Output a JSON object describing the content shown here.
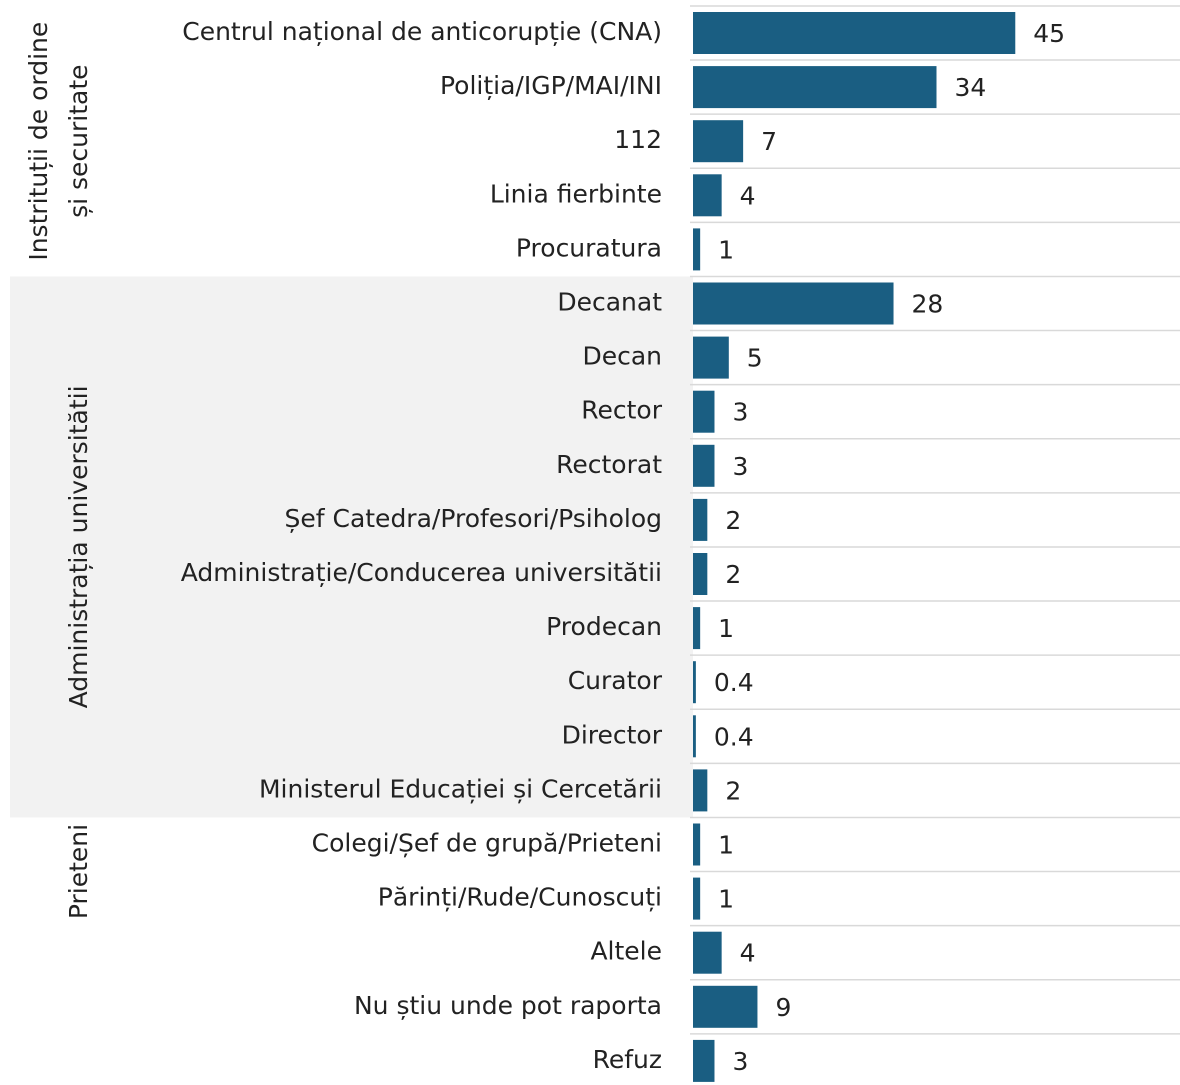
{
  "chart_data": {
    "type": "bar",
    "orientation": "horizontal",
    "categories": [
      "Centrul național de anticorupție (CNA)",
      "Poliția/IGP/MAI/INI",
      "112",
      "Linia fierbinte",
      "Procuratura",
      "Decanat",
      "Decan",
      "Rector",
      "Rectorat",
      "Șef Catedra/Profesori/Psiholog",
      "Administrație/Conducerea universitătii",
      "Prodecan",
      "Curator",
      "Director",
      "Ministerul Educației și Cercetării",
      "Colegi/Șef de grupă/Prieteni",
      "Părinți/Rude/Cunoscuți",
      "Altele",
      "Nu știu unde pot raporta",
      "Refuz"
    ],
    "values": [
      45,
      34,
      7,
      4,
      1,
      28,
      5,
      3,
      3,
      2,
      2,
      1,
      0.4,
      0.4,
      2,
      1,
      1,
      4,
      9,
      3
    ],
    "color": "#1a5e82",
    "xlim": [
      0,
      68
    ],
    "groups": [
      {
        "label": [
          "Instrituții de ordine",
          "și securitate"
        ],
        "first": 0,
        "last": 4,
        "shaded": false
      },
      {
        "label": [
          "Administrația universitătii"
        ],
        "first": 5,
        "last": 14,
        "shaded": true
      },
      {
        "label": [
          "Prieteni"
        ],
        "first": 15,
        "last": 16,
        "shaded": false
      }
    ]
  }
}
